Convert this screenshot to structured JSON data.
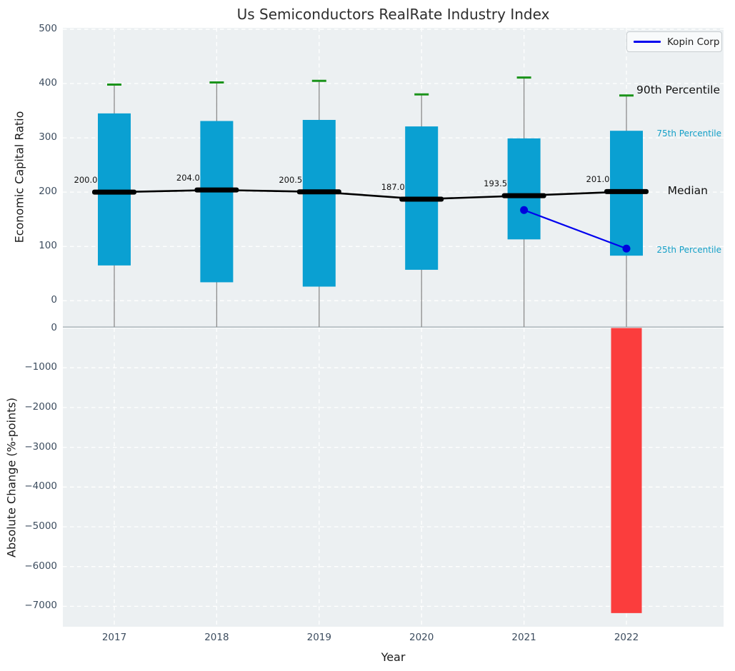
{
  "title": "Us Semiconductors RealRate Industry Index",
  "legend": {
    "label": "Kopin Corp"
  },
  "colors": {
    "box_fill": "#0aa0d2",
    "p90_cap": "#1a931a",
    "median": "#000000",
    "kopin_line": "#0000ee",
    "kopin_dot": "#0000dd",
    "negative_bar": "#fb3d3d",
    "axes_background": "#ecf0f2",
    "gridline": "#ffffff",
    "tick_text": "#3d4d5f",
    "whisker": "#8c8c8c",
    "percentile_label_text": "#14a0c8"
  },
  "chart_data": [
    {
      "type": "box",
      "ylabel": "Economic Capital Ratio",
      "categories": [
        "2017",
        "2018",
        "2019",
        "2020",
        "2021",
        "2022"
      ],
      "yticks": [
        "500",
        "400",
        "300",
        "200",
        "100",
        "0"
      ],
      "ylim": [
        -48,
        503
      ],
      "grid": true,
      "series": [
        {
          "name": "Median",
          "values": [
            200.0,
            204.0,
            200.5,
            187.0,
            193.5,
            201.0
          ]
        },
        {
          "name": "75th Percentile",
          "values": [
            345,
            331,
            333,
            321,
            299,
            313
          ]
        },
        {
          "name": "25th Percentile",
          "values": [
            65,
            34,
            26,
            57,
            113,
            83
          ]
        },
        {
          "name": "90th Percentile",
          "values": [
            398,
            402,
            405,
            380,
            411,
            378
          ]
        }
      ],
      "median_labels": [
        "200.0",
        "204.0",
        "200.5",
        "187.0",
        "193.5",
        "201.0"
      ],
      "whisker_low": "clipped below axis for all years",
      "overlay_line": {
        "name": "Kopin Corp",
        "x": [
          "2021",
          "2022"
        ],
        "y": [
          167,
          96
        ]
      },
      "annotations": [
        {
          "text": "90th Percentile",
          "value": 387,
          "emphasis": "large"
        },
        {
          "text": "75th Percentile",
          "value": 307,
          "emphasis": "small"
        },
        {
          "text": "Median",
          "value": 202,
          "emphasis": "large"
        },
        {
          "text": "25th Percentile",
          "value": 92,
          "emphasis": "small"
        }
      ]
    },
    {
      "type": "bar",
      "ylabel": "Absolute Change (%-points)",
      "xlabel": "Year",
      "categories": [
        "2017",
        "2018",
        "2019",
        "2020",
        "2021",
        "2022"
      ],
      "values": [
        null,
        null,
        null,
        null,
        null,
        -7170
      ],
      "yticks": [
        "0",
        "−1000",
        "−2000",
        "−3000",
        "−4000",
        "−5000",
        "−6000",
        "−7000"
      ],
      "ylim": [
        -7513,
        0
      ],
      "grid": true
    }
  ]
}
